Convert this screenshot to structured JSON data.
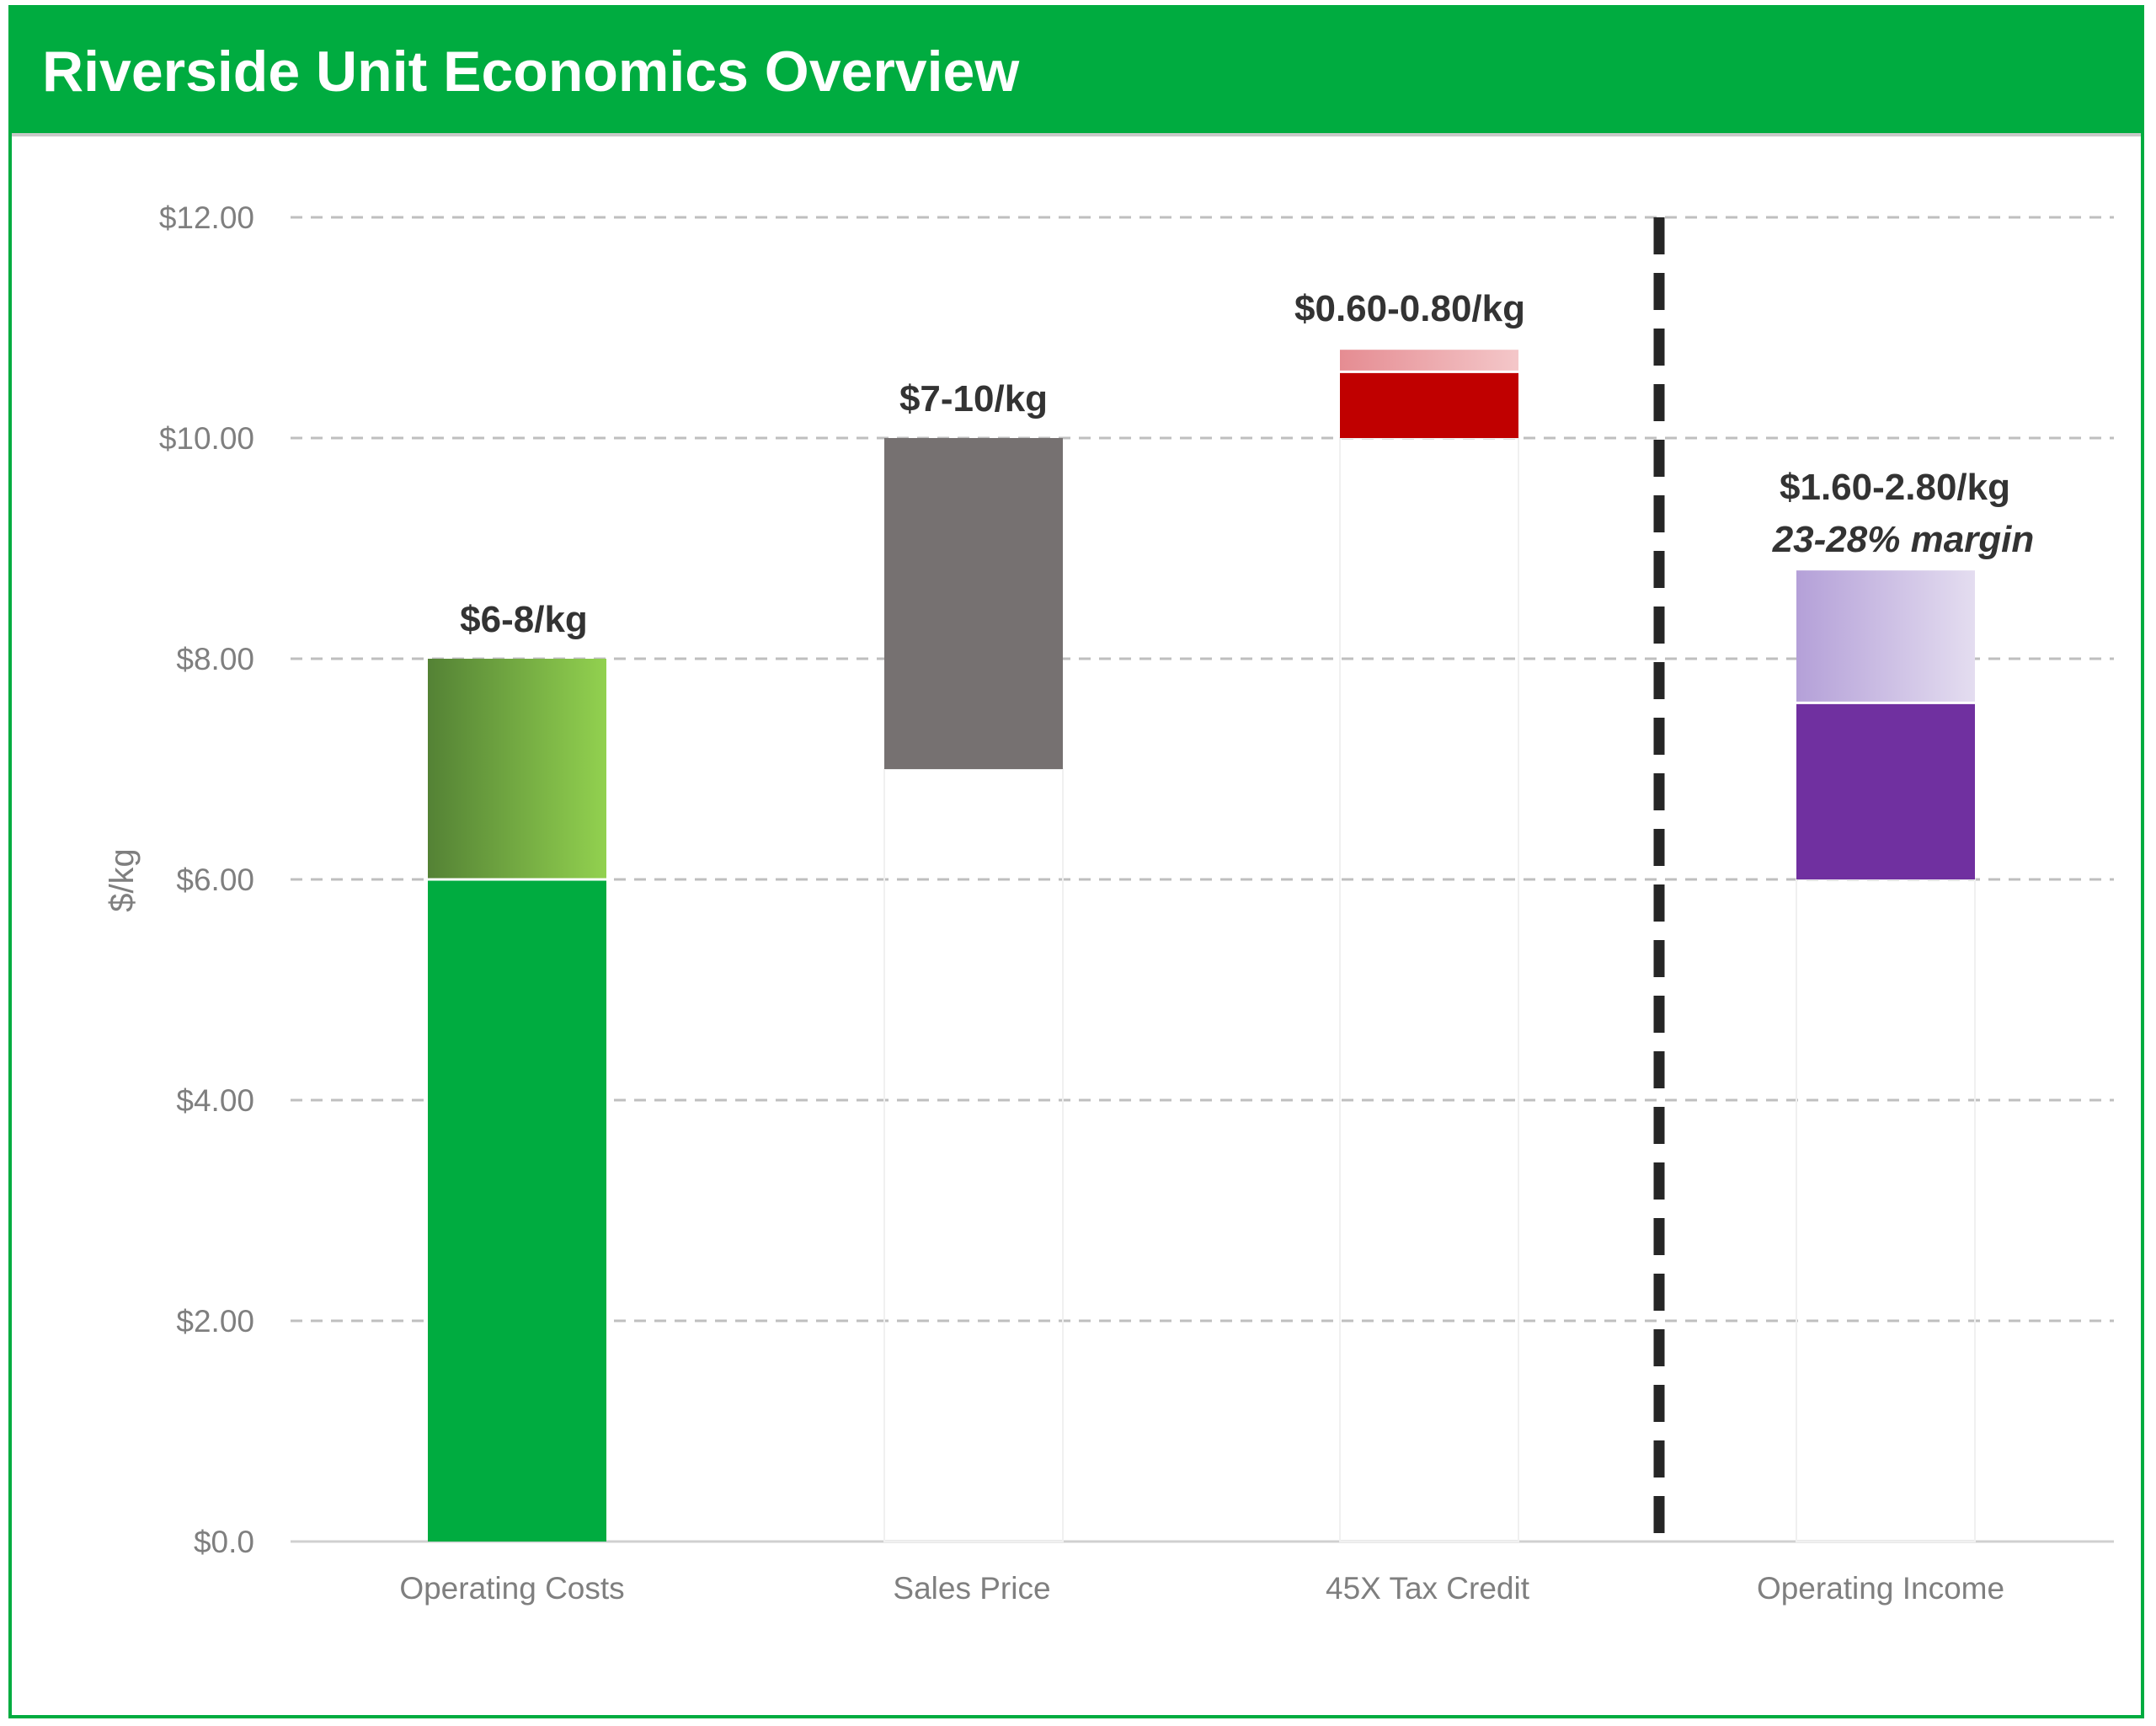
{
  "header": {
    "title": "Riverside Unit Economics Overview"
  },
  "colors": {
    "brand_green": "#00AC40",
    "operating_costs_base": "#00AC40",
    "operating_costs_range_start": "#548235",
    "operating_costs_range_end": "#92D14F",
    "sales_price": "#767171",
    "tax_credit": "#C00000",
    "tax_credit_range": "#F4C7C9",
    "operating_income": "#7030A0",
    "operating_income_range_start": "#B4A0D8",
    "operating_income_range_end": "#E4DDF0",
    "gridline": "#bfbfbf",
    "divider": "#262626"
  },
  "chart_data": {
    "type": "bar",
    "subtype": "floating-range-bar",
    "title": "Riverside Unit Economics Overview",
    "ylabel": "$/kg",
    "xlabel": "",
    "ylim": [
      0,
      12
    ],
    "yticks": [
      0,
      2,
      4,
      6,
      8,
      10,
      12
    ],
    "ytick_labels": [
      "$0.0",
      "$2.00",
      "$4.00",
      "$6.00",
      "$8.00",
      "$10.00",
      "$12.00"
    ],
    "grid": true,
    "legend": "none",
    "categories": [
      "Operating Costs",
      "Sales Price",
      "45X Tax Credit",
      "Operating Income"
    ],
    "series": [
      {
        "name": "Operating Costs",
        "base": 0,
        "low": 6,
        "high": 8,
        "label": "$6-8/kg"
      },
      {
        "name": "Sales Price",
        "base": 7,
        "low": 10,
        "high": 10,
        "label": "$7-10/kg"
      },
      {
        "name": "45X Tax Credit",
        "base": 10,
        "low": 10.6,
        "high": 10.8,
        "label": "$0.60-0.80/kg"
      },
      {
        "name": "Operating Income",
        "base": 6,
        "low": 7.6,
        "high": 8.8,
        "label": "$1.60-2.80/kg",
        "sublabel": "23-28% margin"
      }
    ],
    "divider_after_category": 2
  }
}
